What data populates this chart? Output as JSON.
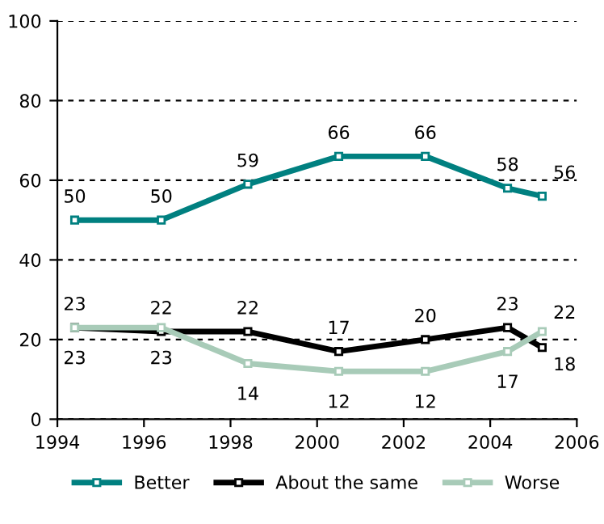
{
  "chart_data": {
    "type": "line",
    "x": [
      1994.4,
      1996.4,
      1998.4,
      2000.5,
      2002.5,
      2004.4,
      2005.2
    ],
    "series": [
      {
        "name": "Better",
        "color": "#008080",
        "values": [
          50,
          50,
          59,
          66,
          66,
          58,
          56
        ]
      },
      {
        "name": "About the same",
        "color": "#000000",
        "values": [
          23,
          22,
          22,
          17,
          20,
          23,
          18
        ]
      },
      {
        "name": "Worse",
        "color": "#a8cbb8",
        "values": [
          23,
          23,
          14,
          12,
          12,
          17,
          22
        ]
      }
    ],
    "xlim": [
      1994,
      2006
    ],
    "xticks": [
      1994,
      1996,
      1998,
      2000,
      2002,
      2004,
      2006
    ],
    "ylim": [
      0,
      100
    ],
    "yticks": [
      0,
      20,
      40,
      60,
      80,
      100
    ],
    "grid": "y",
    "legend": "bottom",
    "marker": "square",
    "line_style": "solid",
    "data_labels": true
  }
}
